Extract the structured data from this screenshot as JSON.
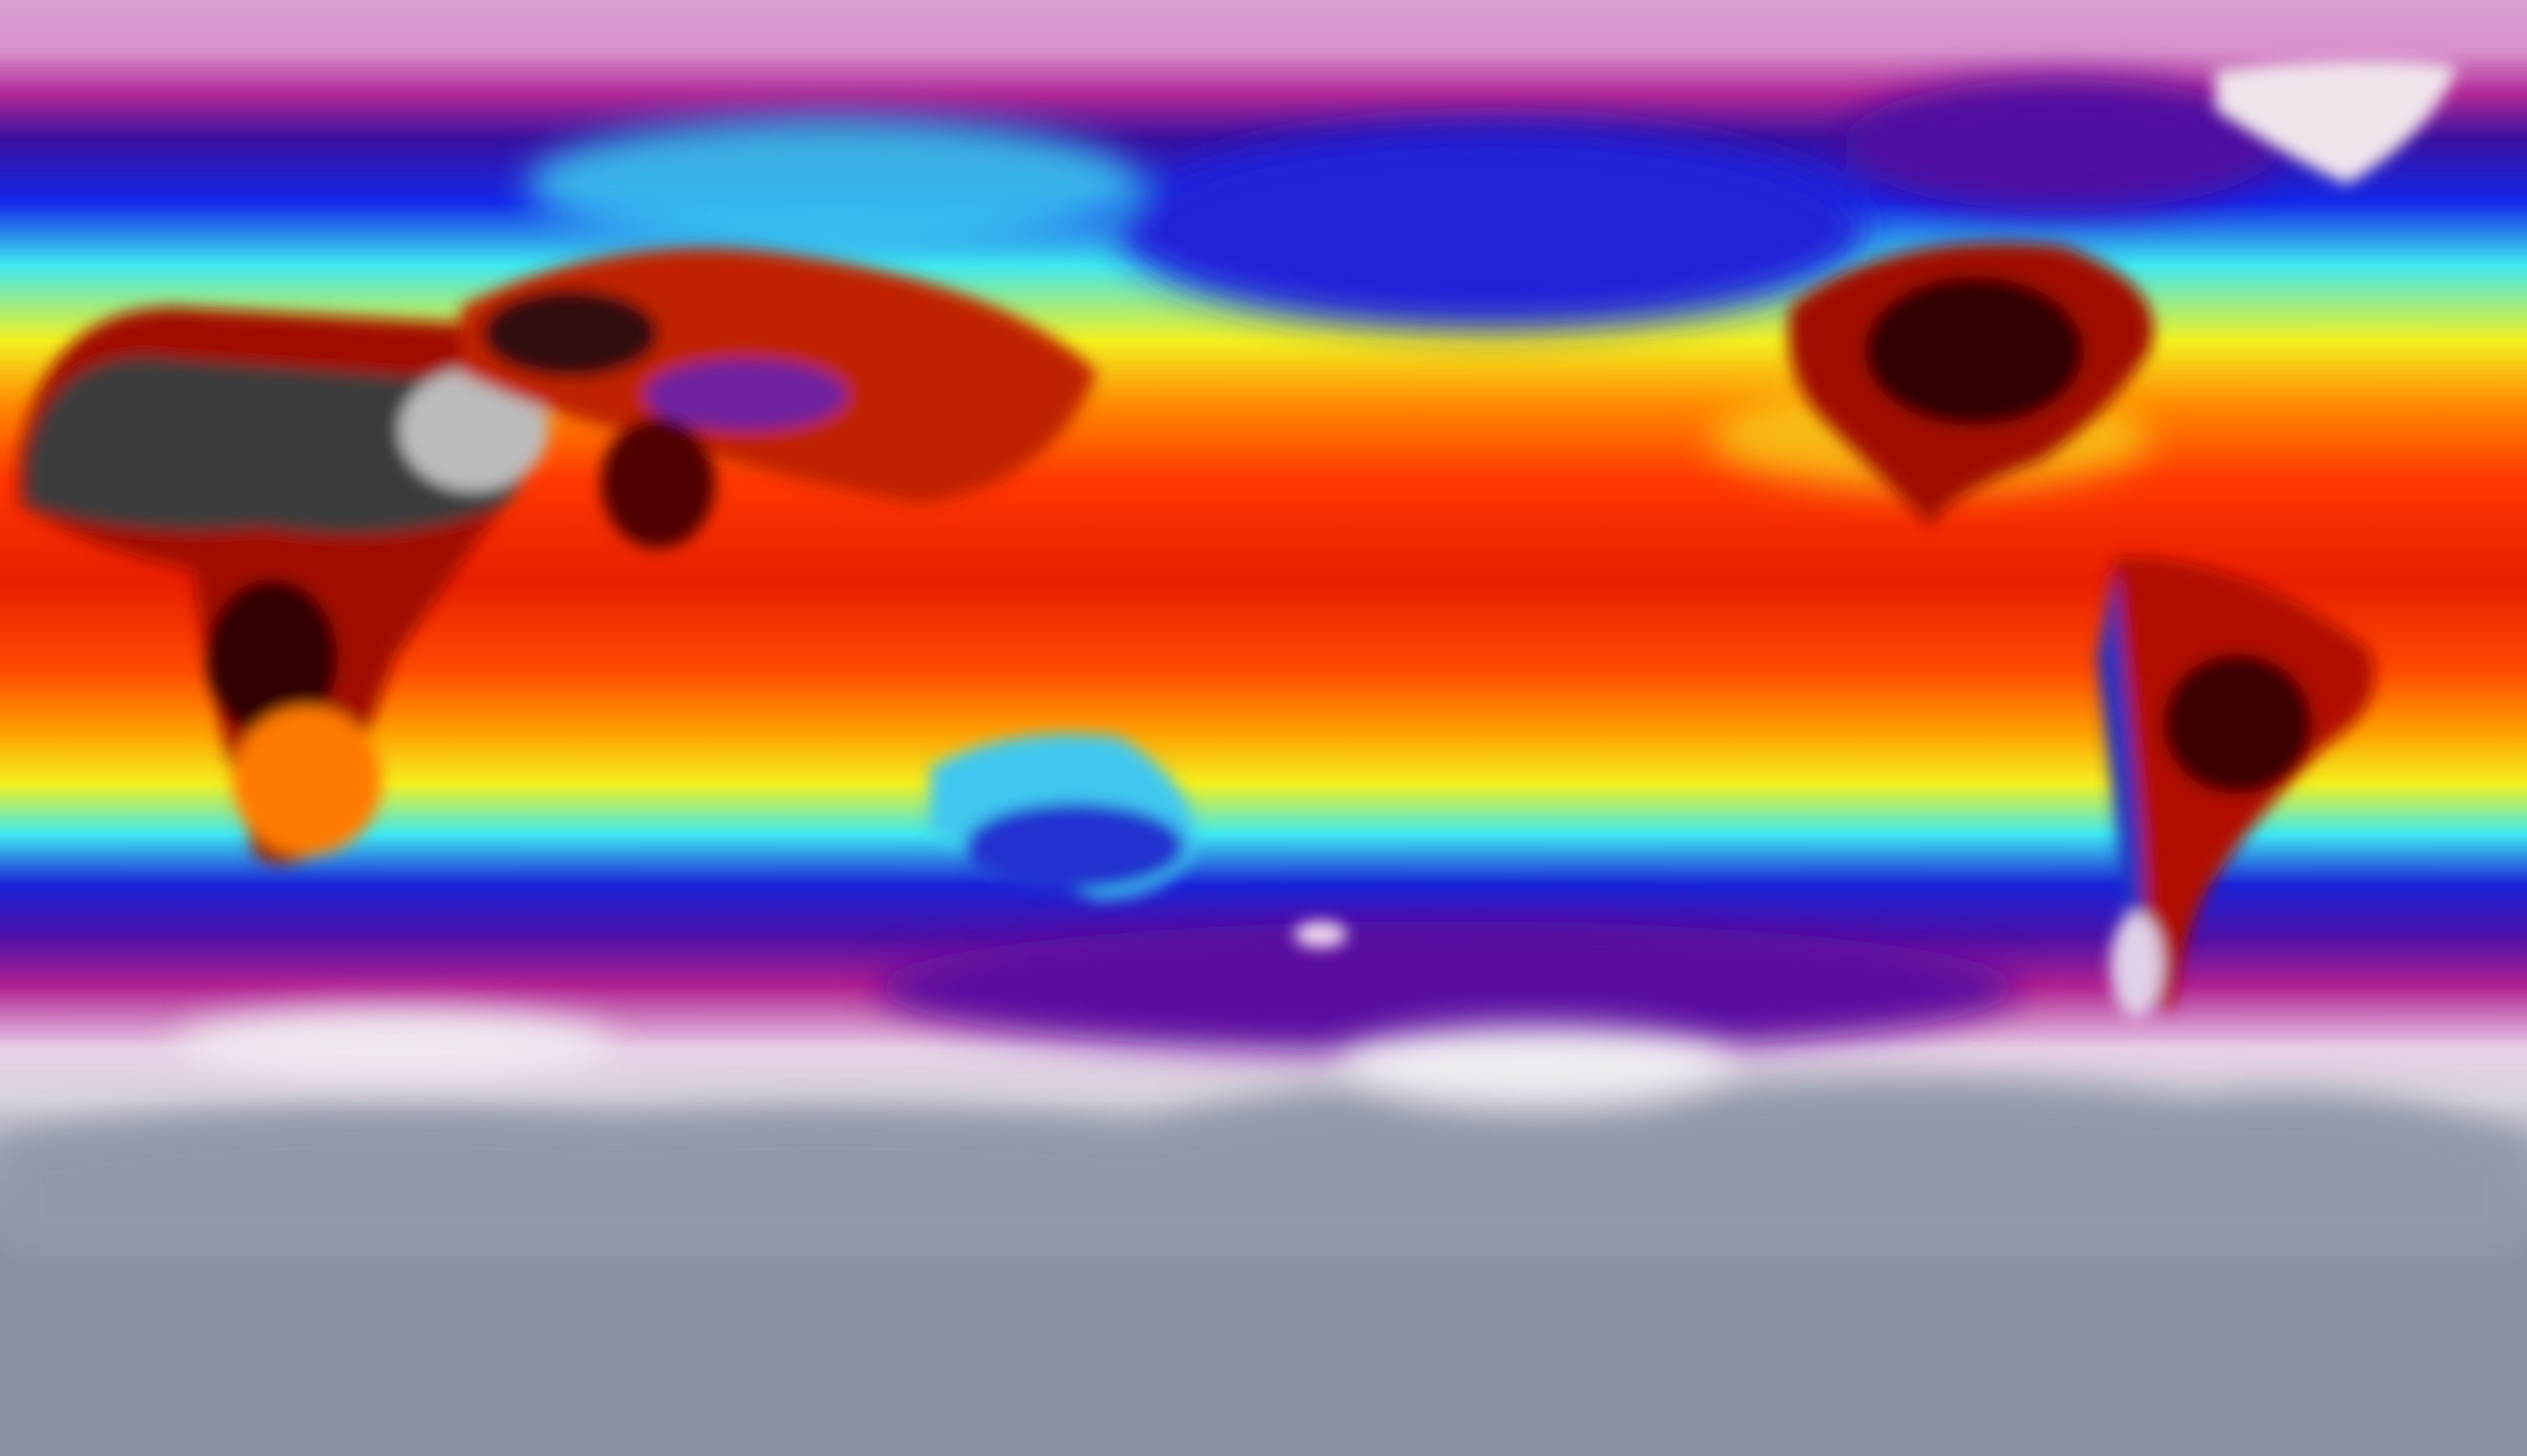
{
  "map": {
    "projection": "equirectangular",
    "extent": "global",
    "colormap": [
      "#8a90a0",
      "#e8d8ea",
      "#b02896",
      "#3a10a0",
      "#1020e0",
      "#40e8f0",
      "#f4f020",
      "#ff8a00",
      "#e82000",
      "#600000",
      "#202020",
      "#c8c8c8"
    ],
    "features": {
      "ocean_background": true,
      "sahara_hot_gray": "#3a3a3a",
      "tibet_cold": "#7020a0",
      "greenland_ice": "#f0e4ec",
      "antarctica": "#9aa0b0"
    }
  }
}
